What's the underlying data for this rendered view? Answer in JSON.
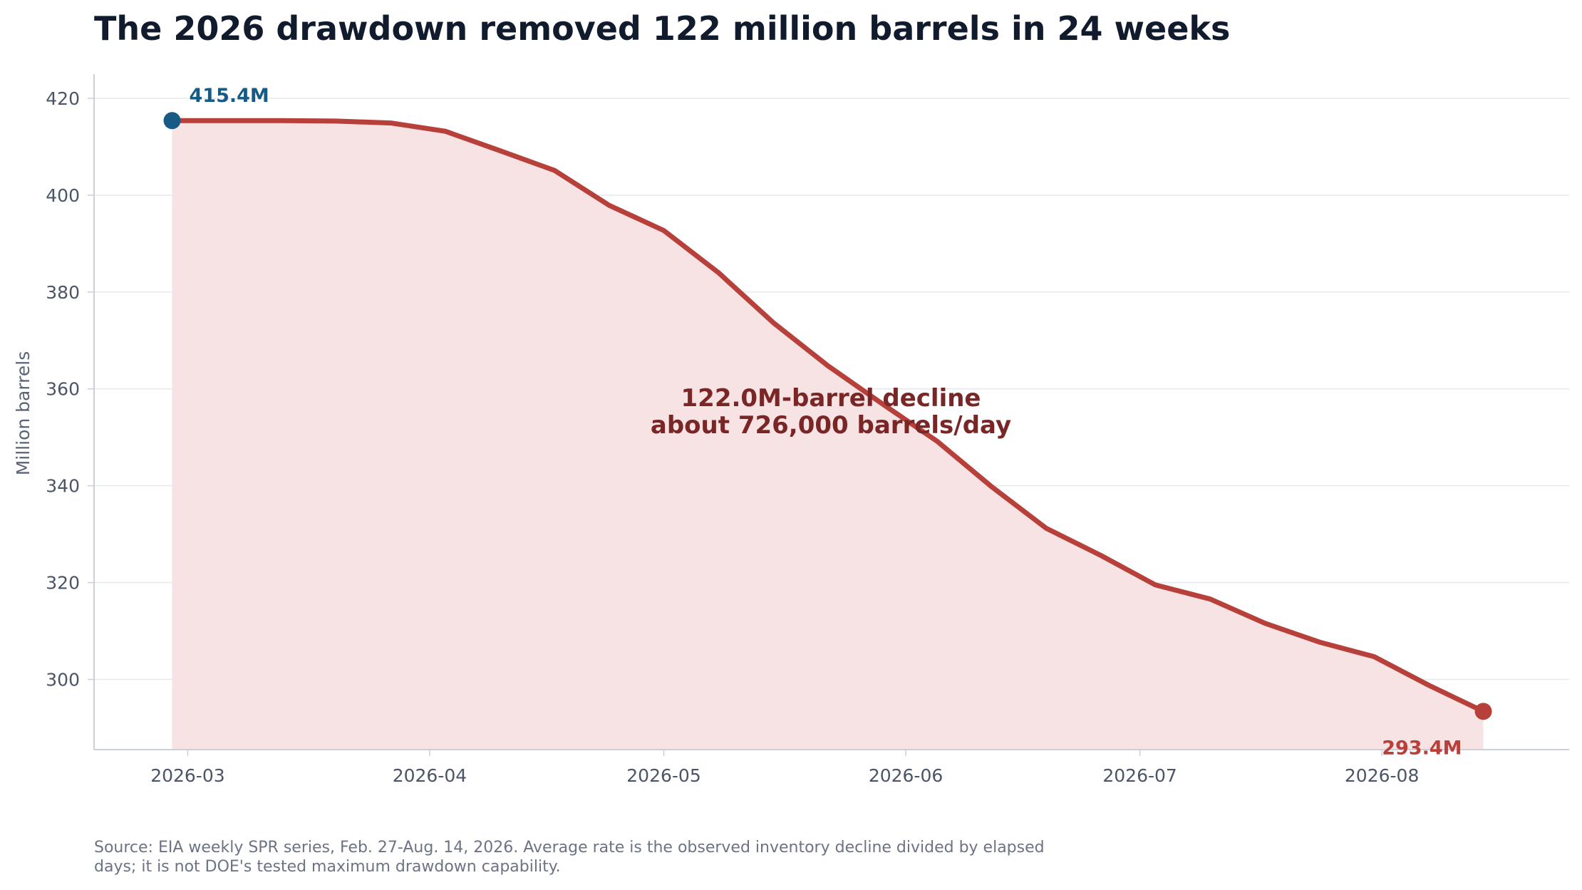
{
  "chart_data": {
    "type": "area",
    "title": "The 2026 drawdown removed 122 million barrels in 24 weeks",
    "ylabel": "Million barrels",
    "xlabel": "",
    "ylim": [
      285.5,
      425
    ],
    "xlim": [
      "2026-02-17",
      "2026-08-25"
    ],
    "y_ticks": [
      300,
      320,
      340,
      360,
      380,
      400,
      420
    ],
    "x_ticks": [
      "2026-03",
      "2026-04",
      "2026-05",
      "2026-06",
      "2026-07",
      "2026-08"
    ],
    "grid": "horizontal",
    "series": [
      {
        "x": [
          "2026-02-27",
          "2026-03-06",
          "2026-03-13",
          "2026-03-20",
          "2026-03-27",
          "2026-04-03",
          "2026-04-10",
          "2026-04-17",
          "2026-04-24",
          "2026-05-01",
          "2026-05-08",
          "2026-05-15",
          "2026-05-22",
          "2026-05-29",
          "2026-06-05",
          "2026-06-12",
          "2026-06-19",
          "2026-06-26",
          "2026-07-03",
          "2026-07-10",
          "2026-07-17",
          "2026-07-24",
          "2026-07-31",
          "2026-08-07",
          "2026-08-14"
        ],
        "values": [
          415.4,
          415.4,
          415.4,
          415.3,
          414.9,
          413.2,
          409.2,
          405.1,
          397.9,
          392.7,
          384.0,
          373.7,
          364.8,
          356.9,
          349.2,
          339.8,
          331.2,
          325.6,
          319.5,
          316.6,
          311.6,
          307.7,
          304.7,
          298.8,
          293.4
        ],
        "color": "#b8403a",
        "fill_color": "#f7e3e3"
      }
    ],
    "annotations": [
      {
        "text_lines": [
          "122.0M-barrel decline",
          "about 726,000 barrels/day"
        ],
        "color": "#7a2626"
      }
    ],
    "endpoints": [
      {
        "label": "415.4M",
        "x": "2026-02-27",
        "y": 415.4,
        "color": "#175a85"
      },
      {
        "label": "293.4M",
        "x": "2026-08-14",
        "y": 293.4,
        "color": "#b8403a"
      }
    ],
    "source": "Source: EIA weekly SPR series, Feb. 27-Aug. 14, 2026. Average rate is the observed inventory decline divided by elapsed days; it is not DOE's tested maximum drawdown capability."
  }
}
